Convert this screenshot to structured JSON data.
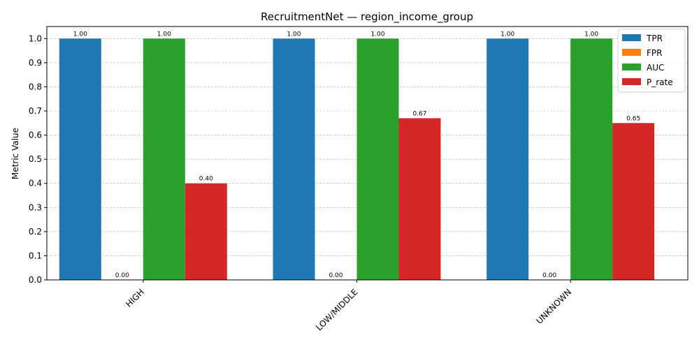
{
  "chart_data": {
    "type": "bar",
    "title": "RecruitmentNet — region_income_group",
    "xlabel": "",
    "ylabel": "Metric Value",
    "categories": [
      "HIGH",
      "LOW/MIDDLE",
      "UNKNOWN"
    ],
    "series": [
      {
        "name": "TPR",
        "color": "#1f77b4",
        "values": [
          1.0,
          1.0,
          1.0
        ]
      },
      {
        "name": "FPR",
        "color": "#ff7f0e",
        "values": [
          0.0,
          0.0,
          0.0
        ]
      },
      {
        "name": "AUC",
        "color": "#2ca02c",
        "values": [
          1.0,
          1.0,
          1.0
        ]
      },
      {
        "name": "P_rate",
        "color": "#d62728",
        "values": [
          0.4,
          0.67,
          0.65
        ]
      }
    ],
    "data_labels": [
      [
        "1.00",
        "0.00",
        "1.00",
        "0.40"
      ],
      [
        "1.00",
        "0.00",
        "1.00",
        "0.67"
      ],
      [
        "1.00",
        "0.00",
        "1.00",
        "0.65"
      ]
    ],
    "ylim": [
      0,
      1.05
    ],
    "yticks": [
      "0.0",
      "0.1",
      "0.2",
      "0.3",
      "0.4",
      "0.5",
      "0.6",
      "0.7",
      "0.8",
      "0.9",
      "1.0"
    ],
    "grid": "y-dashed",
    "legend_position": "top-right"
  }
}
